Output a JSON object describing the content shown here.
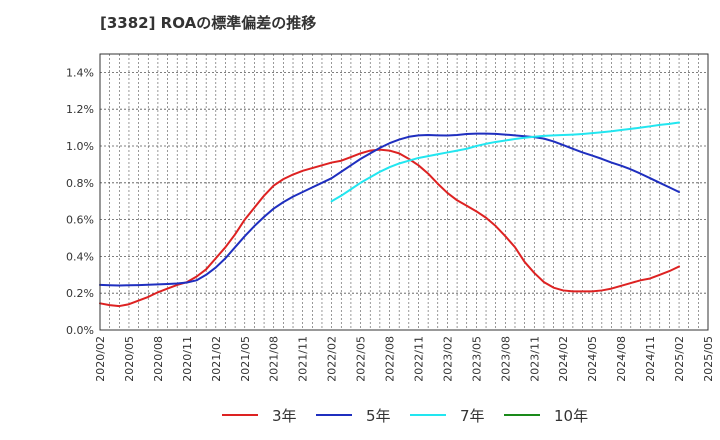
{
  "chart_data": {
    "type": "line",
    "title": "[3382]  ROAの標準偏差の推移",
    "xlabel": "",
    "ylabel": "",
    "x_ticks": [
      "2020/02",
      "2020/05",
      "2020/08",
      "2020/11",
      "2021/02",
      "2021/05",
      "2021/08",
      "2021/11",
      "2022/02",
      "2022/05",
      "2022/08",
      "2022/11",
      "2023/02",
      "2023/05",
      "2023/08",
      "2023/11",
      "2024/02",
      "2024/05",
      "2024/08",
      "2024/11",
      "2025/02",
      "2025/05"
    ],
    "y_ticks": [
      "0.0%",
      "0.2%",
      "0.4%",
      "0.6%",
      "0.8%",
      "1.0%",
      "1.2%",
      "1.4%"
    ],
    "ylim": [
      0,
      1.5
    ],
    "grid": true,
    "legend_position": "bottom",
    "series": [
      {
        "name": "3年",
        "color": "#dd2222",
        "x": [
          "2020/02",
          "2020/03",
          "2020/04",
          "2020/05",
          "2020/06",
          "2020/07",
          "2020/08",
          "2020/09",
          "2020/10",
          "2020/11",
          "2020/12",
          "2021/01",
          "2021/02",
          "2021/03",
          "2021/04",
          "2021/05",
          "2021/06",
          "2021/07",
          "2021/08",
          "2021/09",
          "2021/10",
          "2021/11",
          "2021/12",
          "2022/01",
          "2022/02",
          "2022/03",
          "2022/04",
          "2022/05",
          "2022/06",
          "2022/07",
          "2022/08",
          "2022/09",
          "2022/10",
          "2022/11",
          "2022/12",
          "2023/01",
          "2023/02",
          "2023/03",
          "2023/04",
          "2023/05",
          "2023/06",
          "2023/07",
          "2023/08",
          "2023/09",
          "2023/10",
          "2023/11",
          "2023/12",
          "2024/01",
          "2024/02",
          "2024/03",
          "2024/04",
          "2024/05",
          "2024/06",
          "2024/07",
          "2024/08",
          "2024/09",
          "2024/10",
          "2024/11",
          "2024/12",
          "2025/01",
          "2025/02"
        ],
        "values": [
          0.145,
          0.135,
          0.13,
          0.14,
          0.16,
          0.18,
          0.205,
          0.225,
          0.245,
          0.26,
          0.29,
          0.33,
          0.39,
          0.45,
          0.52,
          0.6,
          0.665,
          0.73,
          0.785,
          0.82,
          0.845,
          0.865,
          0.88,
          0.895,
          0.91,
          0.92,
          0.94,
          0.96,
          0.975,
          0.98,
          0.975,
          0.96,
          0.93,
          0.895,
          0.85,
          0.795,
          0.745,
          0.705,
          0.675,
          0.645,
          0.61,
          0.565,
          0.51,
          0.45,
          0.37,
          0.31,
          0.26,
          0.23,
          0.215,
          0.21,
          0.21,
          0.21,
          0.215,
          0.225,
          0.24,
          0.255,
          0.27,
          0.28,
          0.3,
          0.32,
          0.345
        ]
      },
      {
        "name": "5年",
        "color": "#1f2fbf",
        "x": [
          "2020/02",
          "2020/03",
          "2020/04",
          "2020/05",
          "2020/06",
          "2020/07",
          "2020/08",
          "2020/09",
          "2020/10",
          "2020/11",
          "2020/12",
          "2021/01",
          "2021/02",
          "2021/03",
          "2021/04",
          "2021/05",
          "2021/06",
          "2021/07",
          "2021/08",
          "2021/09",
          "2021/10",
          "2021/11",
          "2021/12",
          "2022/01",
          "2022/02",
          "2022/03",
          "2022/04",
          "2022/05",
          "2022/06",
          "2022/07",
          "2022/08",
          "2022/09",
          "2022/10",
          "2022/11",
          "2022/12",
          "2023/01",
          "2023/02",
          "2023/03",
          "2023/04",
          "2023/05",
          "2023/06",
          "2023/07",
          "2023/08",
          "2023/09",
          "2023/10",
          "2023/11",
          "2023/12",
          "2024/01",
          "2024/02",
          "2024/03",
          "2024/04",
          "2024/05",
          "2024/06",
          "2024/07",
          "2024/08",
          "2024/09",
          "2024/10",
          "2024/11",
          "2024/12",
          "2025/01",
          "2025/02"
        ],
        "values": [
          0.245,
          0.243,
          0.242,
          0.243,
          0.244,
          0.246,
          0.248,
          0.25,
          0.253,
          0.258,
          0.27,
          0.3,
          0.34,
          0.39,
          0.45,
          0.51,
          0.565,
          0.615,
          0.66,
          0.695,
          0.725,
          0.75,
          0.775,
          0.8,
          0.825,
          0.86,
          0.895,
          0.93,
          0.96,
          0.99,
          1.015,
          1.035,
          1.05,
          1.058,
          1.06,
          1.058,
          1.057,
          1.06,
          1.065,
          1.067,
          1.067,
          1.066,
          1.062,
          1.058,
          1.053,
          1.048,
          1.04,
          1.025,
          1.005,
          0.985,
          0.965,
          0.948,
          0.93,
          0.91,
          0.893,
          0.873,
          0.85,
          0.825,
          0.8,
          0.775,
          0.75
        ]
      },
      {
        "name": "7年",
        "color": "#22e6f0",
        "x": [
          "2022/02",
          "2022/03",
          "2022/04",
          "2022/05",
          "2022/06",
          "2022/07",
          "2022/08",
          "2022/09",
          "2022/10",
          "2022/11",
          "2022/12",
          "2023/01",
          "2023/02",
          "2023/03",
          "2023/04",
          "2023/05",
          "2023/06",
          "2023/07",
          "2023/08",
          "2023/09",
          "2023/10",
          "2023/11",
          "2023/12",
          "2024/01",
          "2024/02",
          "2024/03",
          "2024/04",
          "2024/05",
          "2024/06",
          "2024/07",
          "2024/08",
          "2024/09",
          "2024/10",
          "2024/11",
          "2024/12",
          "2025/01",
          "2025/02"
        ],
        "values": [
          0.7,
          0.73,
          0.765,
          0.8,
          0.83,
          0.86,
          0.885,
          0.905,
          0.92,
          0.935,
          0.945,
          0.955,
          0.965,
          0.975,
          0.985,
          1.0,
          1.012,
          1.022,
          1.03,
          1.038,
          1.045,
          1.05,
          1.055,
          1.058,
          1.06,
          1.062,
          1.065,
          1.07,
          1.075,
          1.08,
          1.087,
          1.093,
          1.1,
          1.107,
          1.115,
          1.12,
          1.128
        ]
      },
      {
        "name": "10年",
        "color": "#1a8a1a",
        "x": [],
        "values": []
      }
    ]
  }
}
